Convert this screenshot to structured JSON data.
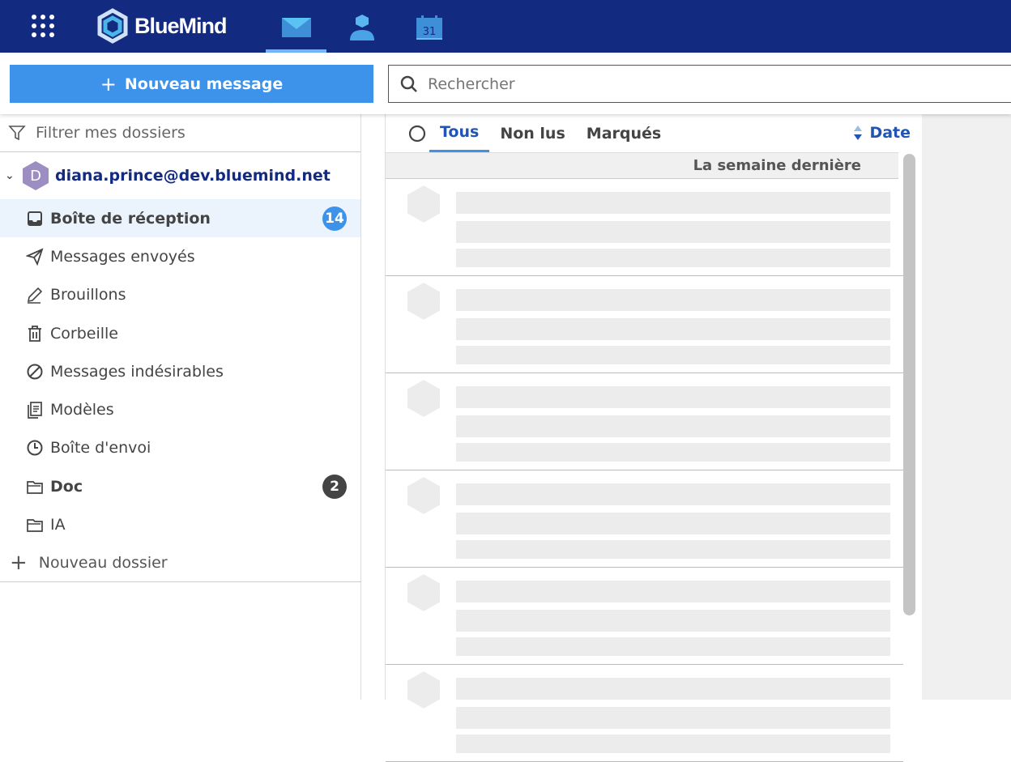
{
  "header": {
    "brand": "BlueMind",
    "apps": [
      {
        "name": "mail",
        "active": true
      },
      {
        "name": "contacts"
      },
      {
        "name": "calendar",
        "label": "31"
      }
    ]
  },
  "toolbar": {
    "new_message": "Nouveau message",
    "search_placeholder": "Rechercher"
  },
  "sidebar": {
    "filter_placeholder": "Filtrer mes dossiers",
    "account": {
      "initial": "D",
      "email": "diana.prince@dev.bluemind.net"
    },
    "folders": [
      {
        "label": "Boîte de réception",
        "icon": "inbox-icon",
        "badge": "14",
        "selected": true
      },
      {
        "label": "Messages envoyés",
        "icon": "send-icon"
      },
      {
        "label": "Brouillons",
        "icon": "pencil-icon"
      },
      {
        "label": "Corbeille",
        "icon": "trash-icon"
      },
      {
        "label": "Messages indésirables",
        "icon": "block-icon"
      },
      {
        "label": "Modèles",
        "icon": "template-icon"
      },
      {
        "label": "Boîte d'envoi",
        "icon": "clock-icon"
      },
      {
        "label": "Doc",
        "icon": "folder-icon",
        "badge": "2"
      },
      {
        "label": "IA",
        "icon": "folder-icon"
      }
    ],
    "new_folder": "Nouveau dossier"
  },
  "list": {
    "tabs": [
      "Tous",
      "Non lus",
      "Marqués"
    ],
    "active_tab": "Tous",
    "sort": "Date",
    "group": "La semaine dernière"
  },
  "colors": {
    "topbar": "#122a80",
    "accent": "#3d92ea",
    "badge_unread": "#3d92ea",
    "badge_dark": "#444444"
  }
}
